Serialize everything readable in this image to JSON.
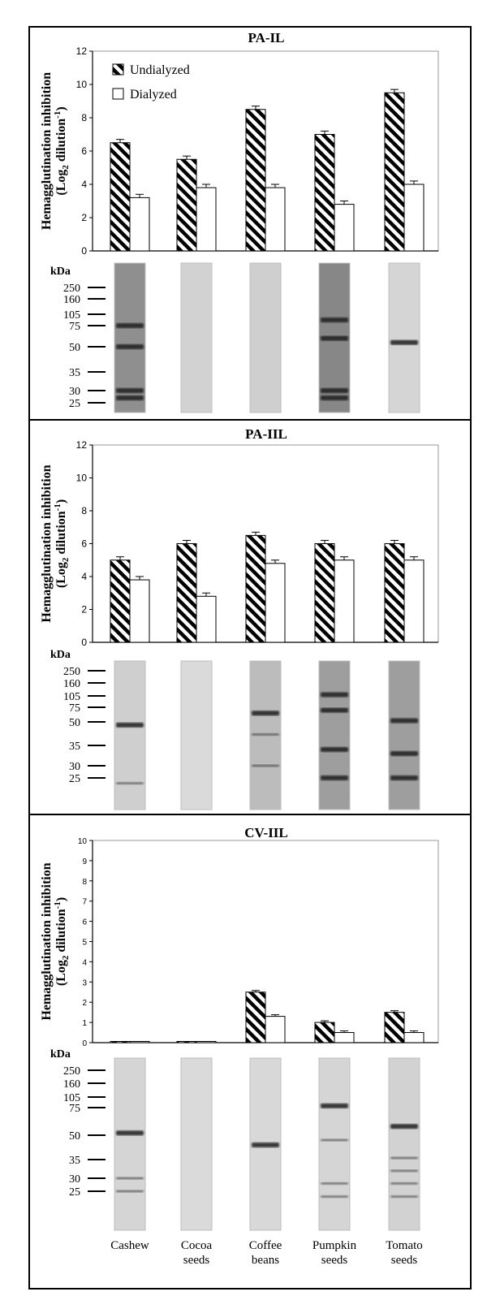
{
  "legend": {
    "undialyzed": "Undialyzed",
    "dialyzed": "Dialyzed"
  },
  "ylabel_line1": "Hemagglutination inhibition",
  "ylabel_line2_pre": "(Log",
  "ylabel_line2_sub": "2",
  "ylabel_line2_mid": " dilution",
  "ylabel_line2_sup": "-1",
  "ylabel_line2_post": ")",
  "kda_label": "kDa",
  "categories": [
    "Cashew",
    "Cocoa\nseeds",
    "Coffee\nbeans",
    "Pumpkin\nseeds",
    "Tomato\nseeds"
  ],
  "colors": {
    "frame": "#000000",
    "bar_hatch": "#000000",
    "bar_fill": "#ffffff",
    "lane": "#d4d4d4",
    "band": "#1a1a1a"
  },
  "chart_data": [
    {
      "type": "bar",
      "title": "PA-IL",
      "ylabel": "Hemagglutination inhibition (Log2 dilution-1)",
      "ylim": [
        0,
        12
      ],
      "yticks": [
        0,
        2,
        4,
        6,
        8,
        10,
        12
      ],
      "categories": [
        "Cashew",
        "Cocoa seeds",
        "Coffee beans",
        "Pumpkin seeds",
        "Tomato seeds"
      ],
      "series": [
        {
          "name": "Undialyzed",
          "values": [
            6.5,
            5.5,
            8.5,
            7.0,
            9.5
          ]
        },
        {
          "name": "Dialyzed",
          "values": [
            3.2,
            3.8,
            3.8,
            2.8,
            4.0
          ]
        }
      ],
      "legend": "top-left",
      "blot": {
        "markers_kda": [
          "250",
          "160",
          "105",
          "75",
          "50",
          "35",
          "30",
          "25"
        ],
        "lane_intensity": [
          0.55,
          0.1,
          0.12,
          0.6,
          0.08
        ],
        "bands_kda": [
          [
            30,
            27,
            50,
            75
          ],
          [],
          [],
          [
            30,
            27,
            60,
            90
          ],
          [
            55
          ]
        ]
      }
    },
    {
      "type": "bar",
      "title": "PA-IIL",
      "ylabel": "Hemagglutination inhibition (Log2 dilution-1)",
      "ylim": [
        0,
        12
      ],
      "yticks": [
        0,
        2,
        4,
        6,
        8,
        10,
        12
      ],
      "categories": [
        "Cashew",
        "Cocoa seeds",
        "Coffee beans",
        "Pumpkin seeds",
        "Tomato seeds"
      ],
      "series": [
        {
          "name": "Undialyzed",
          "values": [
            5.0,
            6.0,
            6.5,
            6.0,
            6.0
          ]
        },
        {
          "name": "Dialyzed",
          "values": [
            3.8,
            2.8,
            4.8,
            5.0,
            5.0
          ]
        }
      ],
      "blot": {
        "markers_kda": [
          "250",
          "160",
          "105",
          "75",
          "50",
          "35",
          "30",
          "25"
        ],
        "lane_intensity": [
          0.12,
          0.05,
          0.25,
          0.45,
          0.45
        ],
        "bands_kda": [
          [
            48,
            22
          ],
          [],
          [
            65,
            42,
            30
          ],
          [
            110,
            70,
            34,
            25
          ],
          [
            52,
            33,
            25
          ]
        ]
      }
    },
    {
      "type": "bar",
      "title": "CV-IIL",
      "ylabel": "Hemagglutination inhibition (Log2 dilution-1)",
      "ylim": [
        0,
        10
      ],
      "yticks": [
        0,
        1,
        2,
        3,
        4,
        5,
        6,
        7,
        8,
        9,
        10
      ],
      "categories": [
        "Cashew",
        "Cocoa seeds",
        "Coffee beans",
        "Pumpkin seeds",
        "Tomato seeds"
      ],
      "series": [
        {
          "name": "Undialyzed",
          "values": [
            0.05,
            0.05,
            2.5,
            1.0,
            1.5
          ]
        },
        {
          "name": "Dialyzed",
          "values": [
            0.05,
            0.05,
            1.3,
            0.5,
            0.5
          ]
        }
      ],
      "blot": {
        "markers_kda": [
          "250",
          "160",
          "105",
          "75",
          "50",
          "35",
          "30",
          "25"
        ],
        "lane_intensity": [
          0.08,
          0.05,
          0.06,
          0.08,
          0.1
        ],
        "bands_kda": [
          [
            52,
            30,
            25
          ],
          [],
          [
            44
          ],
          [
            80,
            47,
            28,
            22
          ],
          [
            58,
            36,
            32,
            28,
            22
          ]
        ]
      }
    }
  ]
}
